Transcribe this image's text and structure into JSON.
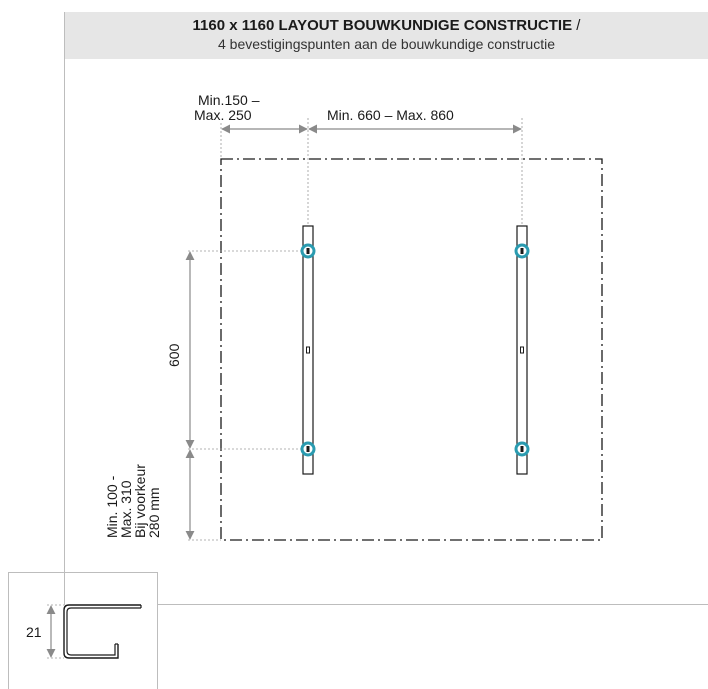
{
  "header": {
    "title": "1160 x 1160 LAYOUT BOUWKUNDIGE CONSTRUCTIE",
    "separator": "/",
    "subtitle": "4 bevestigingspunten aan de bouwkundige constructie"
  },
  "dimensions": {
    "edge_offset_line1": "Min.150 –",
    "edge_offset_line2": "Max. 250",
    "rail_spacing": "Min. 660 – Max. 860",
    "vertical_spacing": "600",
    "bottom_offset_line1": "Min. 100 -",
    "bottom_offset_line2": "Max. 310",
    "bottom_offset_line3": "Bij voorkeur",
    "bottom_offset_line4": "280 mm"
  },
  "profile_detail": {
    "height_label": "21"
  },
  "colors": {
    "mount_point": "#2a9bb0",
    "dimension_arrow": "#8a8a8a",
    "outline": "#1a1a1a",
    "header_bg": "#e6e6e6"
  }
}
